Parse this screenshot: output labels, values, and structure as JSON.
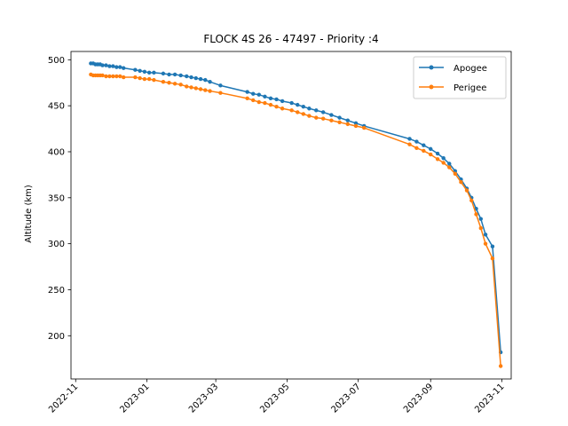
{
  "chart_data": {
    "type": "line",
    "title": "FLOCK 4S 26 - 47497 - Priority :4",
    "xlabel": "",
    "ylabel": "Altitude (km)",
    "xlim": [
      "2022-10-28",
      "2023-11-09"
    ],
    "ylim": [
      153,
      509
    ],
    "x_ticks": [
      "2022-11",
      "2023-01",
      "2023-03",
      "2023-05",
      "2023-07",
      "2023-09",
      "2023-11"
    ],
    "y_ticks": [
      200,
      250,
      300,
      350,
      400,
      450,
      500
    ],
    "grid": false,
    "legend": "top-right",
    "series": [
      {
        "name": "Apogee",
        "color": "#1f77b4",
        "points": [
          [
            "2022-11-14",
            496
          ],
          [
            "2022-11-16",
            496
          ],
          [
            "2022-11-18",
            495
          ],
          [
            "2022-11-20",
            495
          ],
          [
            "2022-11-22",
            495
          ],
          [
            "2022-11-24",
            494
          ],
          [
            "2022-11-27",
            494
          ],
          [
            "2022-11-30",
            493
          ],
          [
            "2022-12-03",
            493
          ],
          [
            "2022-12-06",
            492
          ],
          [
            "2022-12-09",
            492
          ],
          [
            "2022-12-12",
            491
          ],
          [
            "2022-12-22",
            489
          ],
          [
            "2022-12-26",
            488
          ],
          [
            "2022-12-30",
            487
          ],
          [
            "2023-01-03",
            486
          ],
          [
            "2023-01-07",
            486
          ],
          [
            "2023-01-15",
            485
          ],
          [
            "2023-01-20",
            484
          ],
          [
            "2023-01-25",
            484
          ],
          [
            "2023-01-30",
            483
          ],
          [
            "2023-02-04",
            482
          ],
          [
            "2023-02-08",
            481
          ],
          [
            "2023-02-12",
            480
          ],
          [
            "2023-02-16",
            479
          ],
          [
            "2023-02-20",
            478
          ],
          [
            "2023-02-24",
            476
          ],
          [
            "2023-03-05",
            472
          ],
          [
            "2023-03-28",
            465
          ],
          [
            "2023-04-02",
            463
          ],
          [
            "2023-04-07",
            462
          ],
          [
            "2023-04-12",
            460
          ],
          [
            "2023-04-17",
            458
          ],
          [
            "2023-04-22",
            457
          ],
          [
            "2023-04-27",
            455
          ],
          [
            "2023-05-05",
            453
          ],
          [
            "2023-05-10",
            451
          ],
          [
            "2023-05-15",
            449
          ],
          [
            "2023-05-20",
            447
          ],
          [
            "2023-05-26",
            445
          ],
          [
            "2023-06-01",
            443
          ],
          [
            "2023-06-08",
            440
          ],
          [
            "2023-06-15",
            437
          ],
          [
            "2023-06-22",
            434
          ],
          [
            "2023-06-29",
            431
          ],
          [
            "2023-07-06",
            428
          ],
          [
            "2023-08-14",
            414
          ],
          [
            "2023-08-20",
            411
          ],
          [
            "2023-08-26",
            407
          ],
          [
            "2023-09-01",
            403
          ],
          [
            "2023-09-07",
            398
          ],
          [
            "2023-09-12",
            393
          ],
          [
            "2023-09-17",
            387
          ],
          [
            "2023-09-22",
            379
          ],
          [
            "2023-09-27",
            370
          ],
          [
            "2023-10-02",
            360
          ],
          [
            "2023-10-06",
            350
          ],
          [
            "2023-10-10",
            338
          ],
          [
            "2023-10-14",
            327
          ],
          [
            "2023-10-18",
            310
          ],
          [
            "2023-10-24",
            297
          ],
          [
            "2023-10-31",
            182
          ]
        ]
      },
      {
        "name": "Perigee",
        "color": "#ff7f0e",
        "points": [
          [
            "2022-11-14",
            484
          ],
          [
            "2022-11-16",
            483
          ],
          [
            "2022-11-18",
            483
          ],
          [
            "2022-11-20",
            483
          ],
          [
            "2022-11-22",
            483
          ],
          [
            "2022-11-24",
            483
          ],
          [
            "2022-11-27",
            482
          ],
          [
            "2022-11-30",
            482
          ],
          [
            "2022-12-03",
            482
          ],
          [
            "2022-12-06",
            482
          ],
          [
            "2022-12-09",
            482
          ],
          [
            "2022-12-12",
            481
          ],
          [
            "2022-12-22",
            481
          ],
          [
            "2022-12-26",
            480
          ],
          [
            "2022-12-30",
            479
          ],
          [
            "2023-01-03",
            479
          ],
          [
            "2023-01-07",
            478
          ],
          [
            "2023-01-15",
            476
          ],
          [
            "2023-01-20",
            475
          ],
          [
            "2023-01-25",
            474
          ],
          [
            "2023-01-30",
            473
          ],
          [
            "2023-02-04",
            471
          ],
          [
            "2023-02-08",
            470
          ],
          [
            "2023-02-12",
            469
          ],
          [
            "2023-02-16",
            468
          ],
          [
            "2023-02-20",
            467
          ],
          [
            "2023-02-24",
            466
          ],
          [
            "2023-03-05",
            464
          ],
          [
            "2023-03-28",
            458
          ],
          [
            "2023-04-02",
            456
          ],
          [
            "2023-04-07",
            454
          ],
          [
            "2023-04-12",
            453
          ],
          [
            "2023-04-17",
            451
          ],
          [
            "2023-04-22",
            449
          ],
          [
            "2023-04-27",
            447
          ],
          [
            "2023-05-05",
            445
          ],
          [
            "2023-05-10",
            443
          ],
          [
            "2023-05-15",
            441
          ],
          [
            "2023-05-20",
            439
          ],
          [
            "2023-05-26",
            437
          ],
          [
            "2023-06-01",
            436
          ],
          [
            "2023-06-08",
            434
          ],
          [
            "2023-06-15",
            432
          ],
          [
            "2023-06-22",
            430
          ],
          [
            "2023-06-29",
            428
          ],
          [
            "2023-07-06",
            426
          ],
          [
            "2023-08-14",
            408
          ],
          [
            "2023-08-20",
            404
          ],
          [
            "2023-08-26",
            401
          ],
          [
            "2023-09-01",
            397
          ],
          [
            "2023-09-07",
            392
          ],
          [
            "2023-09-12",
            388
          ],
          [
            "2023-09-17",
            383
          ],
          [
            "2023-09-22",
            376
          ],
          [
            "2023-09-27",
            367
          ],
          [
            "2023-10-02",
            358
          ],
          [
            "2023-10-06",
            347
          ],
          [
            "2023-10-10",
            332
          ],
          [
            "2023-10-14",
            317
          ],
          [
            "2023-10-18",
            300
          ],
          [
            "2023-10-24",
            284
          ],
          [
            "2023-10-31",
            167
          ]
        ]
      }
    ]
  }
}
